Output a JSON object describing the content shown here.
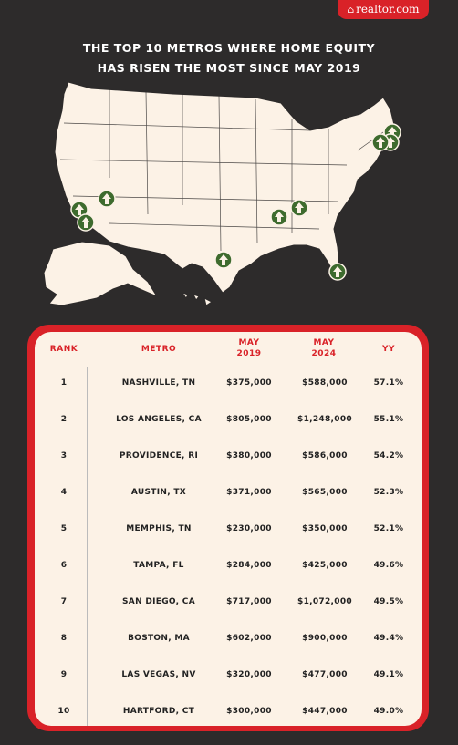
{
  "brand": {
    "logo_text": "realtor.com",
    "accent": "#d92228",
    "background": "#2d2b2b"
  },
  "headline": {
    "line1": "THE TOP 10 METROS WHERE HOME EQUITY",
    "line2": "HAS RISEN THE MOST SINCE MAY 2019"
  },
  "map": {
    "marker_icon": "up-arrow-icon",
    "marker_color": "#3e6b2e",
    "land_color": "#fcf2e6"
  },
  "table": {
    "headers": {
      "rank": "RANK",
      "metro": "METRO",
      "may2019_l1": "MAY",
      "may2019_l2": "2019",
      "may2024_l1": "MAY",
      "may2024_l2": "2024",
      "yy": "YY"
    },
    "rows": [
      {
        "rank": "1",
        "metro": "NASHVILLE, TN",
        "may2019": "$375,000",
        "may2024": "$588,000",
        "yy": "57.1%"
      },
      {
        "rank": "2",
        "metro": "LOS ANGELES, CA",
        "may2019": "$805,000",
        "may2024": "$1,248,000",
        "yy": "55.1%"
      },
      {
        "rank": "3",
        "metro": "PROVIDENCE, RI",
        "may2019": "$380,000",
        "may2024": "$586,000",
        "yy": "54.2%"
      },
      {
        "rank": "4",
        "metro": "AUSTIN, TX",
        "may2019": "$371,000",
        "may2024": "$565,000",
        "yy": "52.3%"
      },
      {
        "rank": "5",
        "metro": "MEMPHIS, TN",
        "may2019": "$230,000",
        "may2024": "$350,000",
        "yy": "52.1%"
      },
      {
        "rank": "6",
        "metro": "TAMPA, FL",
        "may2019": "$284,000",
        "may2024": "$425,000",
        "yy": "49.6%"
      },
      {
        "rank": "7",
        "metro": "SAN DIEGO, CA",
        "may2019": "$717,000",
        "may2024": "$1,072,000",
        "yy": "49.5%"
      },
      {
        "rank": "8",
        "metro": "BOSTON, MA",
        "may2019": "$602,000",
        "may2024": "$900,000",
        "yy": "49.4%"
      },
      {
        "rank": "9",
        "metro": "LAS VEGAS, NV",
        "may2019": "$320,000",
        "may2024": "$477,000",
        "yy": "49.1%"
      },
      {
        "rank": "10",
        "metro": "HARTFORD, CT",
        "may2019": "$300,000",
        "may2024": "$447,000",
        "yy": "49.0%"
      }
    ]
  }
}
